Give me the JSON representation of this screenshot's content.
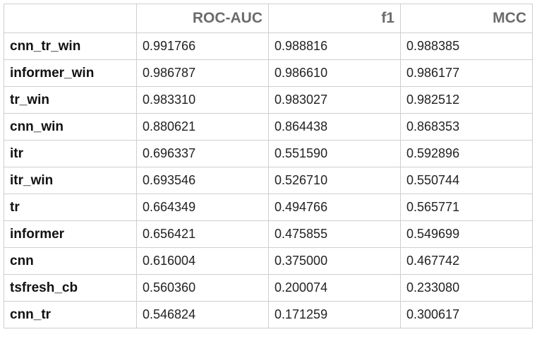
{
  "table": {
    "columns": [
      "",
      "ROC-AUC",
      "f1",
      "MCC"
    ],
    "rows": [
      {
        "name": "cnn_tr_win",
        "values": [
          "0.991766",
          "0.988816",
          "0.988385"
        ]
      },
      {
        "name": "informer_win",
        "values": [
          "0.986787",
          "0.986610",
          "0.986177"
        ]
      },
      {
        "name": "tr_win",
        "values": [
          "0.983310",
          "0.983027",
          "0.982512"
        ]
      },
      {
        "name": "cnn_win",
        "values": [
          "0.880621",
          "0.864438",
          "0.868353"
        ]
      },
      {
        "name": "itr",
        "values": [
          "0.696337",
          "0.551590",
          "0.592896"
        ]
      },
      {
        "name": "itr_win",
        "values": [
          "0.693546",
          "0.526710",
          "0.550744"
        ]
      },
      {
        "name": "tr",
        "values": [
          "0.664349",
          "0.494766",
          "0.565771"
        ]
      },
      {
        "name": "informer",
        "values": [
          "0.656421",
          "0.475855",
          "0.549699"
        ]
      },
      {
        "name": "cnn",
        "values": [
          "0.616004",
          "0.375000",
          "0.467742"
        ]
      },
      {
        "name": "tsfresh_cb",
        "values": [
          "0.560360",
          "0.200074",
          "0.233080"
        ]
      },
      {
        "name": "cnn_tr",
        "values": [
          "0.546824",
          "0.171259",
          "0.300617"
        ]
      }
    ]
  },
  "colors": {
    "header_text": "#6b6b6b",
    "grid_border": "#cfcfcf",
    "row_label_text": "#111111",
    "cell_text": "#222222"
  }
}
